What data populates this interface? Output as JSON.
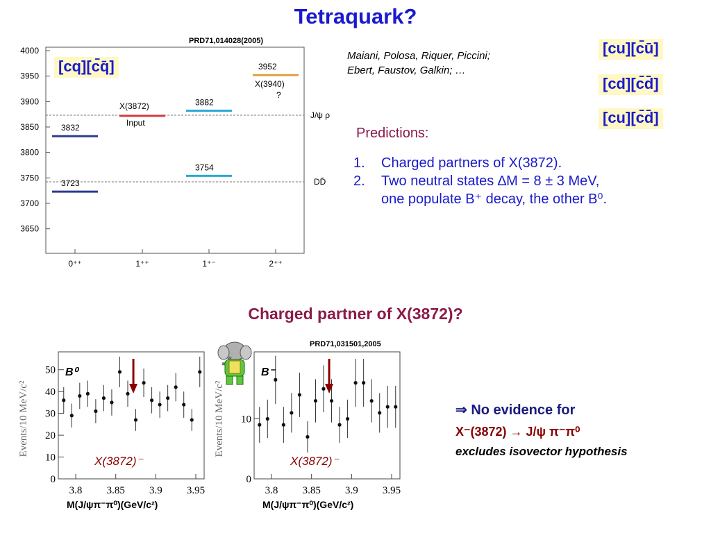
{
  "title": "Tetraquark?",
  "spectrum": {
    "reference": "PRD71,014028(2005)",
    "box_label": "[cq][c̄q̄]",
    "y_ticks": [
      "4000",
      "3950",
      "3900",
      "3850",
      "3800",
      "3750",
      "3700",
      "3650"
    ],
    "x_labels": [
      "0⁺⁺",
      "1⁺⁺",
      "1⁺⁻",
      "2⁺⁺"
    ],
    "threshold_upper": "J/ψ ρ",
    "threshold_lower": "DD̄",
    "levels": [
      {
        "label": "3832",
        "mass": 3832,
        "column": 0,
        "color": "#2e3a8c"
      },
      {
        "label": "3723",
        "mass": 3723,
        "column": 0,
        "color": "#2e3a8c"
      },
      {
        "label": "X(3872)",
        "sub_label": "Input",
        "mass": 3872,
        "column": 1,
        "color": "#d23a3a"
      },
      {
        "label": "3882",
        "mass": 3882,
        "column": 2,
        "color": "#2ba8d8"
      },
      {
        "label": "3754",
        "mass": 3754,
        "column": 2,
        "color": "#2ba8d8"
      },
      {
        "label": "3952",
        "sub_label": "X(3940)",
        "sub_label2": "?",
        "mass": 3952,
        "column": 3,
        "color": "#e0a040"
      }
    ]
  },
  "authors_line1": "Maiani, Polosa, Riquer, Piccini;",
  "authors_line2": "Ebert, Faustov, Galkin; …",
  "quark_boxes": [
    "[cu][c̄ū]",
    "[cd][c̄d̄]",
    "[cu][c̄d̄]"
  ],
  "predictions_heading": "Predictions:",
  "predictions": [
    {
      "num": "1.",
      "text": "Charged partners of X(3872)."
    },
    {
      "num": "2.",
      "text": "Two neutral states ∆M = 8 ± 3 MeV,",
      "text2": "one populate B⁺ decay, the other B⁰."
    }
  ],
  "section_title": "Charged partner of X(3872)?",
  "plots_reference": "PRD71,031501,2005",
  "conclusion_line1": "⇒ No evidence for",
  "conclusion_line2": "X⁻(3872)  → J/ψ π⁻π⁰",
  "conclusion_line3": "excludes isovector hypothesis",
  "colors": {
    "title": "#1a1acc",
    "maroon": "#8b1a4a",
    "box_bg": "#fff8c4",
    "arrow": "#8b0000"
  },
  "chart_data": [
    {
      "type": "scatter",
      "title": "B⁰",
      "annotation": "X(3872)⁻",
      "xlabel": "M(J/ψπ⁻π⁰)(GeV/c²)",
      "ylabel": "Events/10 MeV/c²",
      "xlim": [
        3.78,
        3.95
      ],
      "ylim": [
        0,
        55
      ],
      "x_ticks": [
        "3.8",
        "3.85",
        "3.9",
        "3.95"
      ],
      "y_ticks": [
        "0",
        "10",
        "20",
        "30",
        "40",
        "50"
      ],
      "arrow_x": 3.872,
      "points": [
        {
          "x": 3.785,
          "y": 36,
          "err": 6
        },
        {
          "x": 3.795,
          "y": 29,
          "err": 5.5
        },
        {
          "x": 3.805,
          "y": 38,
          "err": 6
        },
        {
          "x": 3.815,
          "y": 39,
          "err": 6
        },
        {
          "x": 3.825,
          "y": 31,
          "err": 5.5
        },
        {
          "x": 3.835,
          "y": 37,
          "err": 6
        },
        {
          "x": 3.845,
          "y": 35,
          "err": 6
        },
        {
          "x": 3.855,
          "y": 49,
          "err": 7
        },
        {
          "x": 3.865,
          "y": 39,
          "err": 6
        },
        {
          "x": 3.875,
          "y": 27,
          "err": 5
        },
        {
          "x": 3.885,
          "y": 44,
          "err": 6.5
        },
        {
          "x": 3.895,
          "y": 36,
          "err": 6
        },
        {
          "x": 3.905,
          "y": 34,
          "err": 6
        },
        {
          "x": 3.915,
          "y": 37,
          "err": 6
        },
        {
          "x": 3.925,
          "y": 42,
          "err": 6.5
        },
        {
          "x": 3.935,
          "y": 34,
          "err": 6
        },
        {
          "x": 3.945,
          "y": 27,
          "err": 5
        },
        {
          "x": 3.955,
          "y": 49,
          "err": 7
        }
      ]
    },
    {
      "type": "scatter",
      "title": "B⁻",
      "annotation": "X(3872)⁻",
      "xlabel": "M(J/ψπ⁻π⁰)(GeV/c²)",
      "ylabel": "Events/10 MeV/c²",
      "xlim": [
        3.78,
        3.95
      ],
      "ylim": [
        0,
        20
      ],
      "x_ticks": [
        "3.8",
        "3.85",
        "3.9",
        "3.95"
      ],
      "y_ticks": [
        "0",
        "10"
      ],
      "arrow_x": 3.872,
      "points": [
        {
          "x": 3.785,
          "y": 9,
          "err": 3
        },
        {
          "x": 3.795,
          "y": 10,
          "err": 3.2
        },
        {
          "x": 3.805,
          "y": 16.5,
          "err": 4
        },
        {
          "x": 3.815,
          "y": 9,
          "err": 3
        },
        {
          "x": 3.825,
          "y": 11,
          "err": 3.3
        },
        {
          "x": 3.835,
          "y": 14,
          "err": 3.7
        },
        {
          "x": 3.845,
          "y": 7,
          "err": 2.6
        },
        {
          "x": 3.855,
          "y": 13,
          "err": 3.6
        },
        {
          "x": 3.865,
          "y": 15,
          "err": 3.9
        },
        {
          "x": 3.875,
          "y": 13,
          "err": 3.6
        },
        {
          "x": 3.885,
          "y": 9,
          "err": 3
        },
        {
          "x": 3.895,
          "y": 10,
          "err": 3.2
        },
        {
          "x": 3.905,
          "y": 16,
          "err": 4
        },
        {
          "x": 3.915,
          "y": 16,
          "err": 4
        },
        {
          "x": 3.925,
          "y": 13,
          "err": 3.6
        },
        {
          "x": 3.935,
          "y": 11,
          "err": 3.3
        },
        {
          "x": 3.945,
          "y": 12,
          "err": 3.5
        },
        {
          "x": 3.955,
          "y": 12,
          "err": 3.5
        }
      ]
    }
  ]
}
